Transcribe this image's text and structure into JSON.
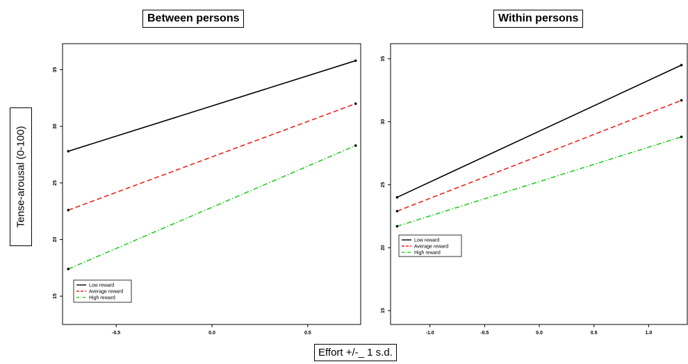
{
  "figure": {
    "ylabel": "Tense-arousal (0-100)",
    "xlabel": "Effort +/-_ 1 s.d."
  },
  "chart_data": [
    {
      "type": "line",
      "title": "Between persons",
      "xlabel": "",
      "ylabel": "",
      "xlim": [
        -0.78,
        0.78
      ],
      "ylim": [
        12.5,
        37.3
      ],
      "xticks": [
        -0.5,
        0.0,
        0.5
      ],
      "xtick_labels": [
        "-0.5",
        "0.0",
        "0.5"
      ],
      "yticks": [
        15,
        20,
        25,
        30,
        35
      ],
      "ytick_labels": [
        "15",
        "20",
        "25",
        "30",
        "35"
      ],
      "grid": false,
      "legend": "bottom-left",
      "series": [
        {
          "name": "Low reward",
          "color": "#000000",
          "dash": "solid",
          "x": [
            -0.75,
            0.75
          ],
          "y": [
            27.8,
            35.8
          ]
        },
        {
          "name": "Average reward",
          "color": "#e8241c",
          "dash": "dashed",
          "x": [
            -0.75,
            0.75
          ],
          "y": [
            22.6,
            32.0
          ]
        },
        {
          "name": "High reward",
          "color": "#22cc22",
          "dash": "dashdot",
          "x": [
            -0.75,
            0.75
          ],
          "y": [
            17.4,
            28.3
          ]
        }
      ]
    },
    {
      "type": "line",
      "title": "Within persons",
      "xlabel": "",
      "ylabel": "",
      "xlim": [
        -1.36,
        1.36
      ],
      "ylim": [
        13.9,
        36.2
      ],
      "xticks": [
        -1.0,
        -0.5,
        0.0,
        0.5,
        1.0
      ],
      "xtick_labels": [
        "-1.0",
        "-0.5",
        "0.0",
        "0.5",
        "1.0"
      ],
      "yticks": [
        15,
        20,
        25,
        30,
        35
      ],
      "ytick_labels": [
        "15",
        "20",
        "25",
        "30",
        "35"
      ],
      "grid": false,
      "legend": "center-left",
      "series": [
        {
          "name": "Low reward",
          "color": "#000000",
          "dash": "solid",
          "x": [
            -1.3,
            1.3
          ],
          "y": [
            24.0,
            34.5
          ]
        },
        {
          "name": "Average reward",
          "color": "#e8241c",
          "dash": "dashed",
          "x": [
            -1.3,
            1.3
          ],
          "y": [
            22.9,
            31.7
          ]
        },
        {
          "name": "High reward",
          "color": "#22cc22",
          "dash": "dashdot",
          "x": [
            -1.3,
            1.3
          ],
          "y": [
            21.7,
            28.8
          ]
        }
      ]
    }
  ]
}
